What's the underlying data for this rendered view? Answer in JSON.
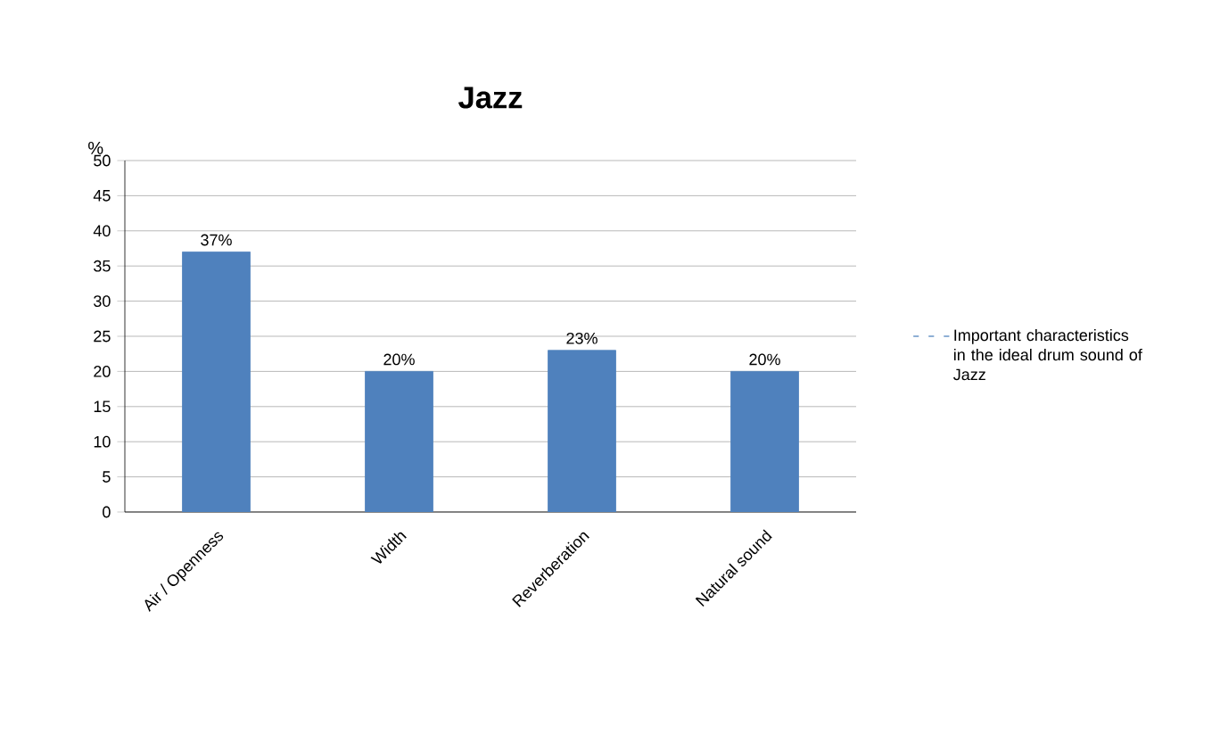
{
  "chart_data": {
    "type": "bar",
    "title": "Jazz",
    "ylabel": "%",
    "categories": [
      "Air / Openness",
      "Width",
      "Reverberation",
      "Natural sound"
    ],
    "series": [
      {
        "name": "Important characteristics in the ideal drum sound of Jazz",
        "color": "#4f81bd",
        "values": [
          37,
          20,
          23,
          20
        ],
        "value_labels": [
          "37%",
          "20%",
          "23%",
          "20%"
        ]
      }
    ],
    "ylim": [
      0,
      50
    ],
    "yticks": [
      0,
      5,
      10,
      15,
      20,
      25,
      30,
      35,
      40,
      45,
      50
    ],
    "grid": "y",
    "legend": "right"
  }
}
